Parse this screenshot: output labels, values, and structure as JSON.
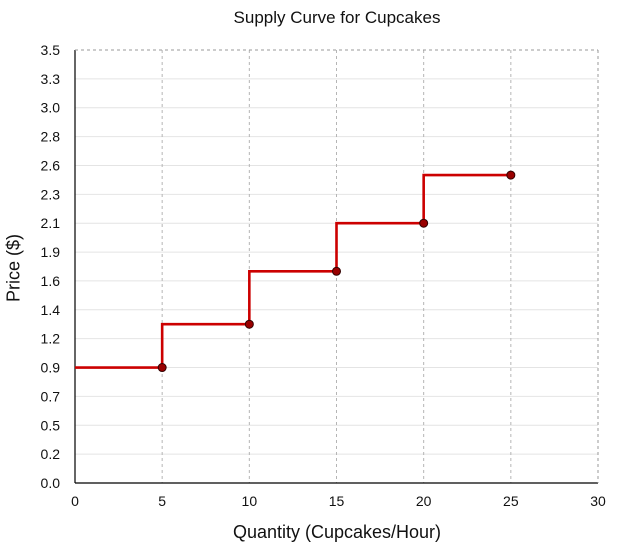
{
  "chart_data": {
    "type": "line",
    "title": "Supply Curve for Cupcakes",
    "xlabel": "Quantity (Cupcakes/Hour)",
    "ylabel": "Price ($)",
    "xlim": [
      0,
      30
    ],
    "ylim": [
      0,
      3.5
    ],
    "x_ticks": [
      "0",
      "5",
      "10",
      "15",
      "20",
      "25",
      "30"
    ],
    "y_ticks": [
      "0.0",
      "0.2",
      "0.5",
      "0.7",
      "0.9",
      "1.2",
      "1.4",
      "1.6",
      "1.9",
      "2.1",
      "2.3",
      "2.6",
      "2.8",
      "3.0",
      "3.3",
      "3.5"
    ],
    "grid": true,
    "step": "before",
    "series": [
      {
        "x": [
          5,
          10,
          15,
          20,
          25
        ],
        "y": [
          0.9,
          1.3,
          1.7,
          2.1,
          2.5
        ],
        "color": "#cc0000",
        "marker_color": "#990000"
      }
    ]
  }
}
